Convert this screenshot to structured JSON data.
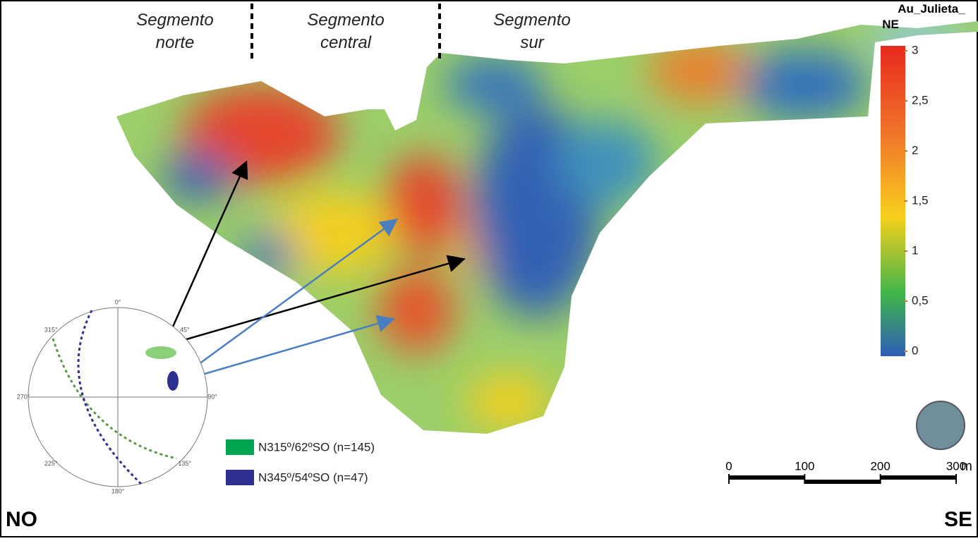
{
  "segments": [
    "Segmento norte",
    "Segmento central",
    "Segmento sur"
  ],
  "colorbar": {
    "title": "Au_Julieta_ NE",
    "range": [
      0,
      3
    ],
    "ticks": [
      3,
      {
        "value": 2.5,
        "label": "2,5"
      },
      2,
      {
        "value": 1.5,
        "label": "1,5"
      },
      1,
      {
        "value": 0.5,
        "label": "0,5"
      },
      0
    ]
  },
  "scale_bar": {
    "range": [
      0,
      300
    ],
    "ticks": [
      0,
      100,
      200,
      300
    ],
    "unit": "m"
  },
  "stereonet": {
    "labels": [
      "0°",
      "45°",
      "90°",
      "135°",
      "180°",
      "225°",
      "270°",
      "315°"
    ]
  },
  "legend": [
    {
      "label": "N315º/62ºSO (n=145)",
      "color": "#00a651"
    },
    {
      "label": "N345º/54ºSO (n=47)",
      "color": "#2e3192"
    }
  ],
  "orientation": {
    "left": "NO",
    "right": "SE"
  }
}
